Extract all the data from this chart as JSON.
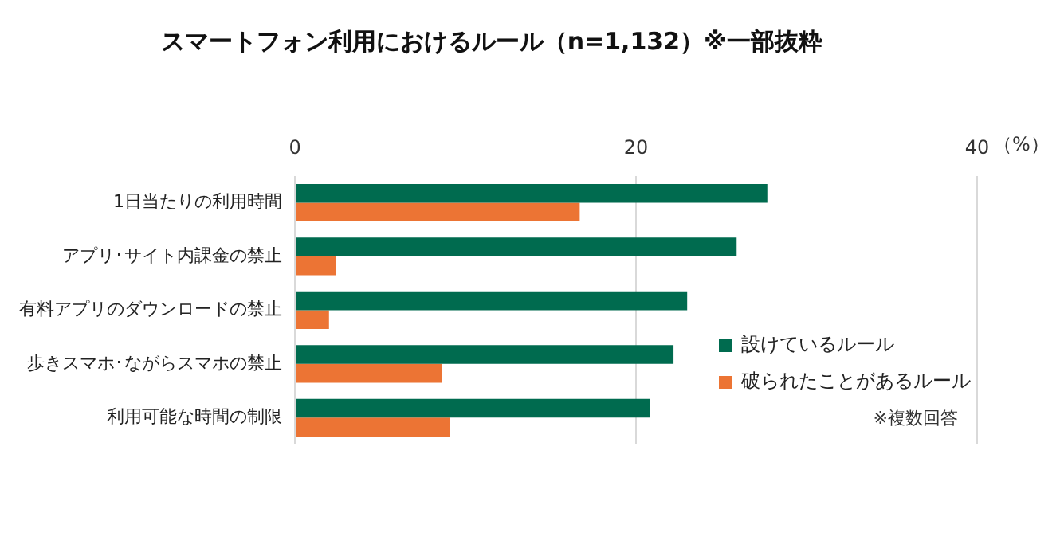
{
  "chart_data": {
    "type": "bar",
    "orientation": "horizontal",
    "title": "スマートフォン利用におけるルール（n=1,132）※一部抜粋",
    "xlabel": "（%）",
    "categories": [
      "1日当たりの利用時間",
      "アプリ･サイト内課金の禁止",
      "有料アプリのダウンロードの禁止",
      "歩きスマホ･ながらスマホの禁止",
      "利用可能な時間の制限"
    ],
    "series": [
      {
        "name": "設けているルール",
        "color": "#006b4f",
        "values": [
          27.7,
          25.9,
          23.0,
          22.2,
          20.8
        ]
      },
      {
        "name": "破られたことがあるルール",
        "color": "#ec7434",
        "values": [
          16.7,
          2.4,
          2.0,
          8.6,
          9.1
        ]
      }
    ],
    "xlim": [
      0,
      40
    ],
    "xticks": [
      0,
      20,
      40
    ],
    "grid": "x",
    "legend": "bottom right",
    "annotations": [
      "※複数回答"
    ]
  }
}
